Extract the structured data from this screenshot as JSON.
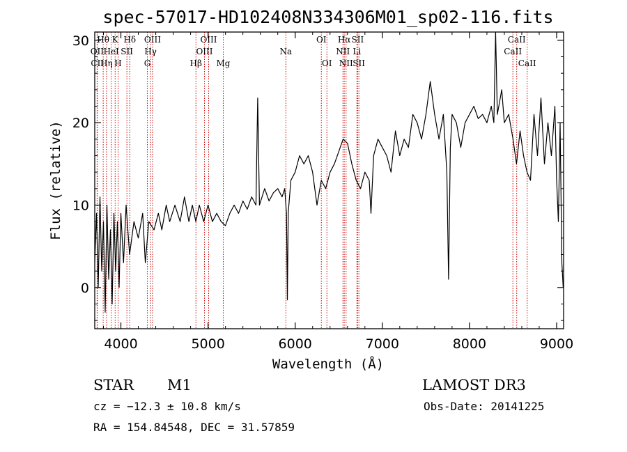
{
  "chart_data": {
    "type": "line",
    "title": "spec-57017-HD102408N334306M01_sp02-116.fits",
    "xlabel": "Wavelength (Å)",
    "ylabel": "Flux (relative)",
    "xlim": [
      3700,
      9080
    ],
    "ylim": [
      -5,
      31
    ],
    "x_ticks": [
      4000,
      5000,
      6000,
      7000,
      8000,
      9000
    ],
    "y_ticks": [
      0,
      10,
      20,
      30
    ],
    "series": [
      {
        "name": "flux",
        "color": "#000000",
        "points": [
          [
            3700,
            3
          ],
          [
            3720,
            9
          ],
          [
            3740,
            0
          ],
          [
            3760,
            11
          ],
          [
            3780,
            2
          ],
          [
            3800,
            8
          ],
          [
            3820,
            -3
          ],
          [
            3840,
            10
          ],
          [
            3860,
            1
          ],
          [
            3880,
            7
          ],
          [
            3900,
            -2
          ],
          [
            3920,
            9
          ],
          [
            3940,
            2
          ],
          [
            3960,
            8
          ],
          [
            3980,
            0
          ],
          [
            4000,
            9
          ],
          [
            4030,
            3
          ],
          [
            4060,
            10
          ],
          [
            4100,
            4
          ],
          [
            4150,
            8
          ],
          [
            4200,
            6
          ],
          [
            4250,
            9
          ],
          [
            4280,
            3
          ],
          [
            4320,
            8
          ],
          [
            4380,
            7
          ],
          [
            4430,
            9
          ],
          [
            4470,
            7
          ],
          [
            4520,
            10
          ],
          [
            4560,
            8
          ],
          [
            4620,
            10
          ],
          [
            4680,
            8
          ],
          [
            4730,
            11
          ],
          [
            4780,
            8
          ],
          [
            4820,
            10
          ],
          [
            4860,
            8
          ],
          [
            4900,
            10
          ],
          [
            4950,
            8
          ],
          [
            5000,
            10
          ],
          [
            5050,
            8
          ],
          [
            5100,
            9
          ],
          [
            5150,
            8
          ],
          [
            5200,
            7.5
          ],
          [
            5250,
            9
          ],
          [
            5300,
            10
          ],
          [
            5350,
            9
          ],
          [
            5400,
            10.5
          ],
          [
            5450,
            9.5
          ],
          [
            5500,
            11
          ],
          [
            5550,
            10
          ],
          [
            5570,
            23
          ],
          [
            5590,
            10
          ],
          [
            5650,
            12
          ],
          [
            5700,
            10.5
          ],
          [
            5750,
            11.5
          ],
          [
            5800,
            12
          ],
          [
            5850,
            11
          ],
          [
            5880,
            12
          ],
          [
            5900,
            9
          ],
          [
            5910,
            -1.5
          ],
          [
            5920,
            9
          ],
          [
            5950,
            13
          ],
          [
            6000,
            14
          ],
          [
            6050,
            16
          ],
          [
            6100,
            15
          ],
          [
            6150,
            16
          ],
          [
            6200,
            14
          ],
          [
            6250,
            10
          ],
          [
            6300,
            13
          ],
          [
            6350,
            12
          ],
          [
            6400,
            14
          ],
          [
            6450,
            15
          ],
          [
            6500,
            16.5
          ],
          [
            6550,
            18
          ],
          [
            6600,
            17.5
          ],
          [
            6650,
            15
          ],
          [
            6700,
            13
          ],
          [
            6750,
            12
          ],
          [
            6800,
            14
          ],
          [
            6850,
            13
          ],
          [
            6870,
            9
          ],
          [
            6900,
            16
          ],
          [
            6950,
            18
          ],
          [
            7000,
            17
          ],
          [
            7050,
            16
          ],
          [
            7100,
            14
          ],
          [
            7150,
            19
          ],
          [
            7200,
            16
          ],
          [
            7250,
            18
          ],
          [
            7300,
            17
          ],
          [
            7350,
            21
          ],
          [
            7400,
            20
          ],
          [
            7450,
            18
          ],
          [
            7500,
            21
          ],
          [
            7550,
            25
          ],
          [
            7600,
            21
          ],
          [
            7650,
            18
          ],
          [
            7700,
            21
          ],
          [
            7740,
            14
          ],
          [
            7760,
            1
          ],
          [
            7780,
            17
          ],
          [
            7800,
            21
          ],
          [
            7850,
            20
          ],
          [
            7900,
            17
          ],
          [
            7950,
            20
          ],
          [
            8000,
            21
          ],
          [
            8050,
            22
          ],
          [
            8100,
            20.5
          ],
          [
            8150,
            21
          ],
          [
            8200,
            20
          ],
          [
            8250,
            22
          ],
          [
            8280,
            20
          ],
          [
            8300,
            31
          ],
          [
            8320,
            21
          ],
          [
            8370,
            24
          ],
          [
            8400,
            20
          ],
          [
            8450,
            21
          ],
          [
            8500,
            18
          ],
          [
            8540,
            15
          ],
          [
            8580,
            19
          ],
          [
            8620,
            16
          ],
          [
            8660,
            14
          ],
          [
            8700,
            13
          ],
          [
            8740,
            21
          ],
          [
            8780,
            16
          ],
          [
            8820,
            23
          ],
          [
            8860,
            15
          ],
          [
            8900,
            20
          ],
          [
            8940,
            16
          ],
          [
            8980,
            22
          ],
          [
            9000,
            13
          ],
          [
            9020,
            8
          ],
          [
            9040,
            20
          ],
          [
            9060,
            3
          ],
          [
            9075,
            0
          ]
        ]
      }
    ],
    "spectral_lines": [
      {
        "label": "Hθ",
        "wavelength": 3797,
        "row": 1
      },
      {
        "label": "OII",
        "wavelength": 3727,
        "row": 2
      },
      {
        "label": "CII",
        "wavelength": 3730,
        "row": 3
      },
      {
        "label": "HeI",
        "wavelength": 3889,
        "row": 2
      },
      {
        "label": "Hη",
        "wavelength": 3835,
        "row": 3
      },
      {
        "label": "K",
        "wavelength": 3934,
        "row": 1
      },
      {
        "label": "SII",
        "wavelength": 4069,
        "row": 2
      },
      {
        "label": "H",
        "wavelength": 3968,
        "row": 3
      },
      {
        "label": "Hδ",
        "wavelength": 4102,
        "row": 1
      },
      {
        "label": "OIII",
        "wavelength": 4363,
        "row": 1
      },
      {
        "label": "Hγ",
        "wavelength": 4340,
        "row": 2
      },
      {
        "label": "G",
        "wavelength": 4304,
        "row": 3
      },
      {
        "label": "OIII",
        "wavelength": 5007,
        "row": 1
      },
      {
        "label": "OIII",
        "wavelength": 4959,
        "row": 2
      },
      {
        "label": "Hβ",
        "wavelength": 4861,
        "row": 3
      },
      {
        "label": "Mg",
        "wavelength": 5175,
        "row": 3
      },
      {
        "label": "Na",
        "wavelength": 5893,
        "row": 2
      },
      {
        "label": "OI",
        "wavelength": 6300,
        "row": 1
      },
      {
        "label": "OI",
        "wavelength": 6364,
        "row": 3
      },
      {
        "label": "Hα",
        "wavelength": 6563,
        "row": 1
      },
      {
        "label": "SII",
        "wavelength": 6717,
        "row": 1
      },
      {
        "label": "NII",
        "wavelength": 6548,
        "row": 2
      },
      {
        "label": "Li",
        "wavelength": 6708,
        "row": 2
      },
      {
        "label": "NII",
        "wavelength": 6584,
        "row": 3
      },
      {
        "label": "SII",
        "wavelength": 6731,
        "row": 3
      },
      {
        "label": "CaII",
        "wavelength": 8542,
        "row": 1
      },
      {
        "label": "CaII",
        "wavelength": 8498,
        "row": 2
      },
      {
        "label": "CaII",
        "wavelength": 8662,
        "row": 3
      }
    ]
  },
  "info": {
    "object_type": "STAR",
    "subclass": "M1",
    "survey": "LAMOST DR3",
    "cz": "cz = −12.3 ± 10.8 km/s",
    "obs_date": "Obs-Date: 20141225",
    "coords": "RA = 154.84548, DEC =  31.57859"
  },
  "colors": {
    "line_marker": "#cc0000",
    "spectrum": "#000000"
  }
}
